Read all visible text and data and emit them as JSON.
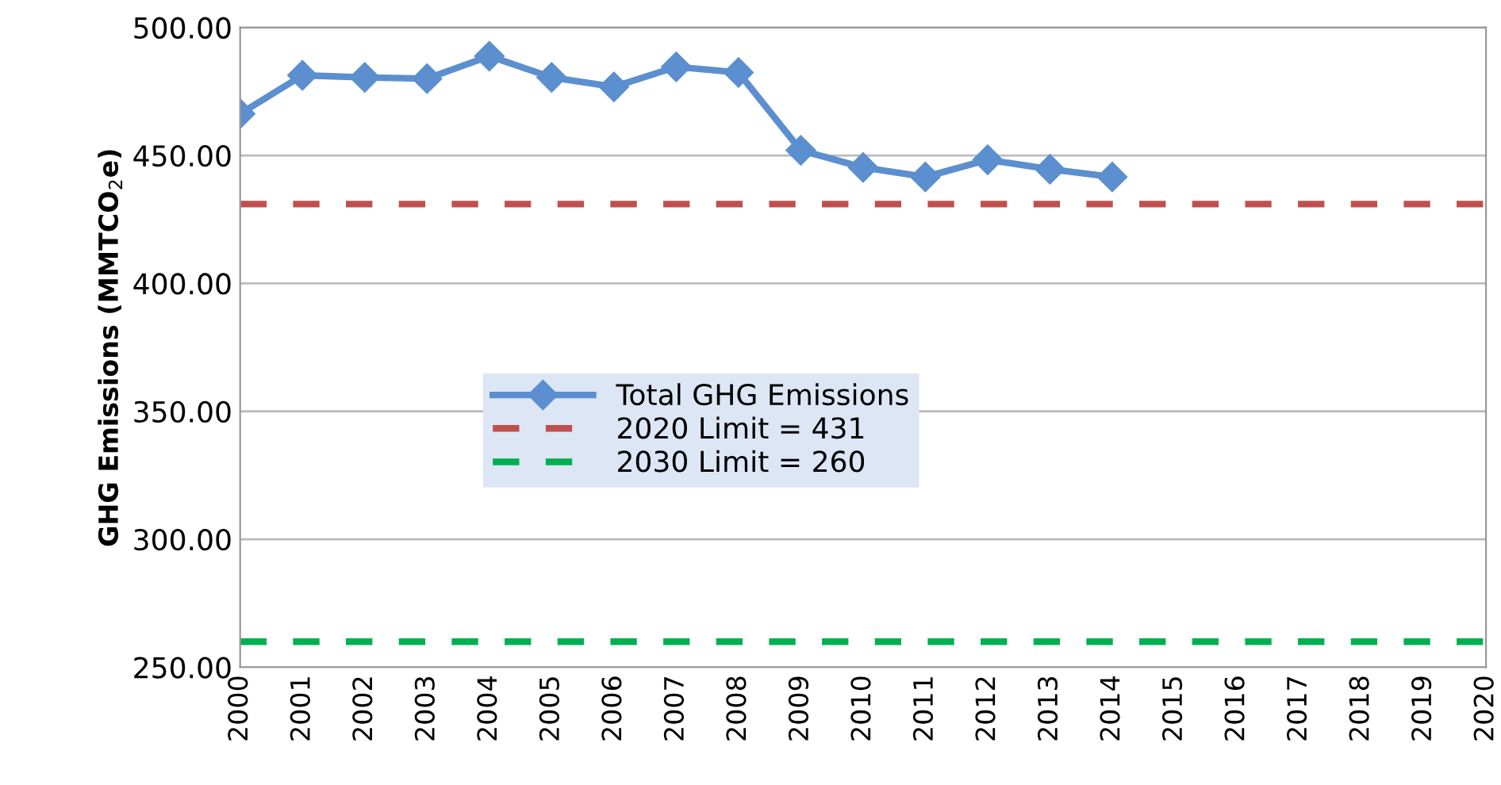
{
  "chart_data": {
    "type": "line",
    "ylabel": "GHG Emissions (MMTCO$_{2}$e)",
    "categories": [
      "2000",
      "2001",
      "2002",
      "2003",
      "2004",
      "2005",
      "2006",
      "2007",
      "2008",
      "2009",
      "2010",
      "2011",
      "2012",
      "2013",
      "2014",
      "2015",
      "2016",
      "2017",
      "2018",
      "2019",
      "2020"
    ],
    "series": [
      {
        "name": "Total GHG Emissions",
        "color": "#5b8fcf",
        "marker": "diamond",
        "line_style": "solid",
        "values": [
          466.3,
          481.3,
          480.5,
          480,
          488.8,
          480.5,
          476.8,
          484.6,
          482.4,
          452,
          445.3,
          441.6,
          448.3,
          444.6,
          441.6,
          null,
          null,
          null,
          null,
          null,
          null
        ]
      },
      {
        "name": "2020 Limit = 431",
        "color": "#c0504d",
        "marker": "none",
        "line_style": "dashed",
        "values": [
          431,
          431,
          431,
          431,
          431,
          431,
          431,
          431,
          431,
          431,
          431,
          431,
          431,
          431,
          431,
          431,
          431,
          431,
          431,
          431,
          431
        ]
      },
      {
        "name": "2030 Limit = 260",
        "color": "#00b050",
        "marker": "none",
        "line_style": "dashed",
        "values": [
          260,
          260,
          260,
          260,
          260,
          260,
          260,
          260,
          260,
          260,
          260,
          260,
          260,
          260,
          260,
          260,
          260,
          260,
          260,
          260,
          260
        ]
      }
    ],
    "ylim": [
      250,
      500
    ],
    "yticks": [
      {
        "value": 250,
        "label": "250.00"
      },
      {
        "value": 300,
        "label": "300.00"
      },
      {
        "value": 350,
        "label": "350.00"
      },
      {
        "value": 400,
        "label": "400.00"
      },
      {
        "value": 450,
        "label": "450.00"
      },
      {
        "value": 500,
        "label": "500.00"
      }
    ],
    "grid": "y",
    "legend": "center"
  }
}
